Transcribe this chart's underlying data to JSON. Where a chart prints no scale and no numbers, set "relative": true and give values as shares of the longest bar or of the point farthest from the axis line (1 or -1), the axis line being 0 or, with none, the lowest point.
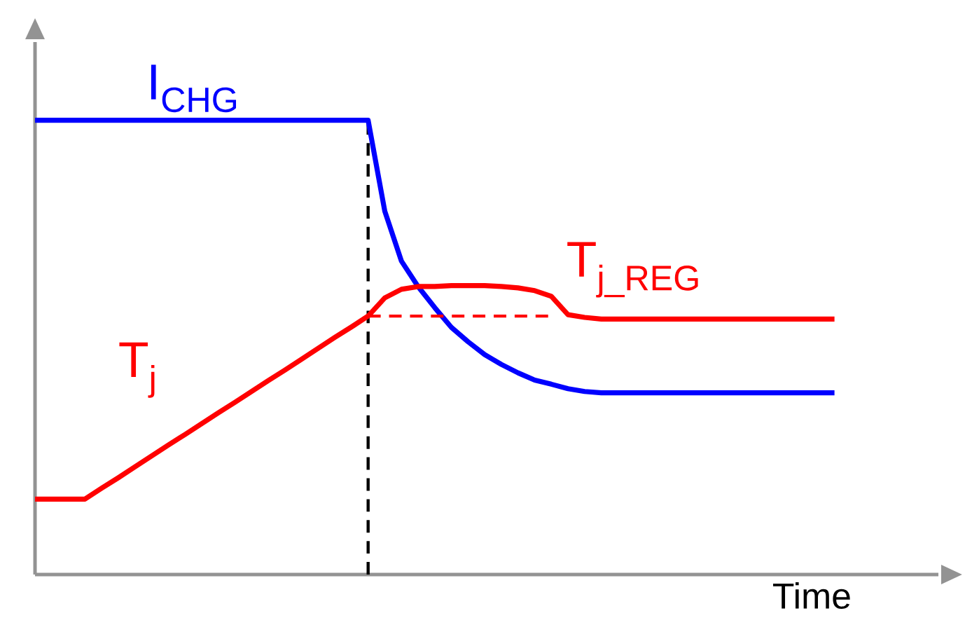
{
  "chart_data": {
    "type": "line",
    "relative": true,
    "xlabel": "Time",
    "tick_labels": false,
    "categories": [
      null,
      null,
      null,
      null,
      null,
      null,
      null,
      null,
      null,
      null,
      null,
      null,
      null,
      null,
      null,
      null,
      null,
      null,
      null,
      null,
      null,
      null,
      null,
      null,
      null,
      null,
      null,
      null,
      null,
      null,
      null,
      null,
      null,
      null,
      null,
      null,
      null,
      null,
      null,
      null,
      null,
      null,
      null,
      null,
      null,
      null,
      null,
      null,
      null
    ],
    "series": [
      {
        "name": "I$_{CHG}$",
        "color": "#0000ff",
        "line_style": "solid",
        "values": [
          1,
          1,
          1,
          1,
          1,
          1,
          1,
          1,
          1,
          1,
          1,
          1,
          1,
          1,
          1,
          1,
          1,
          1,
          1,
          1,
          1,
          0.8,
          0.69,
          0.634,
          0.5875,
          0.544,
          0.5125,
          0.484,
          0.4625,
          0.444,
          0.428,
          0.419,
          0.409,
          0.403,
          0.4,
          0.4,
          0.4,
          0.4,
          0.4,
          0.4,
          0.4,
          0.4,
          0.4,
          0.4,
          0.4,
          0.4,
          0.4,
          0.4,
          0.4
        ]
      },
      {
        "name": "T$_{j}$",
        "color": "#ff0000",
        "line_style": "solid",
        "values": [
          0.166,
          0.166,
          0.166,
          0.166,
          0.19,
          0.213,
          0.237,
          0.261,
          0.285,
          0.308,
          0.332,
          0.356,
          0.379,
          0.403,
          0.427,
          0.45,
          0.474,
          0.498,
          0.522,
          0.545,
          0.569,
          0.609,
          0.628,
          0.634,
          0.634,
          0.636,
          0.636,
          0.636,
          0.634,
          0.631,
          0.625,
          0.6125,
          0.572,
          0.566,
          0.5625,
          0.5625,
          0.5625,
          0.5625,
          0.5625,
          0.5625,
          0.5625,
          0.5625,
          0.5625,
          0.5625,
          0.5625,
          0.5625,
          0.5625,
          0.5625,
          0.5625
        ]
      },
      {
        "name": "T$_{j_REG}$",
        "color": "#ff0000",
        "line_style": "dashed",
        "values": [
          null,
          null,
          null,
          null,
          null,
          null,
          null,
          null,
          null,
          null,
          null,
          null,
          null,
          null,
          null,
          null,
          null,
          null,
          null,
          null,
          0.569,
          0.569,
          0.569,
          0.569,
          0.569,
          0.569,
          0.569,
          0.569,
          0.569,
          0.569,
          0.569,
          0.569,
          null,
          null,
          null,
          null,
          null,
          null,
          null,
          null,
          null,
          null,
          null,
          null,
          null,
          null,
          null,
          null,
          null
        ]
      }
    ]
  }
}
